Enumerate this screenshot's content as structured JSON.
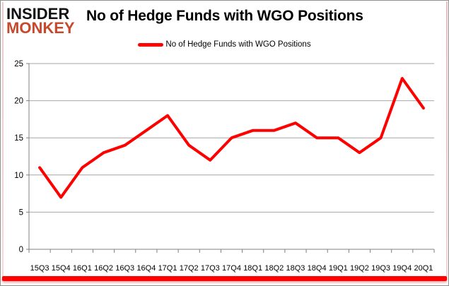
{
  "logo": {
    "line1": "INSIDER",
    "line2": "MONKEY"
  },
  "header": {
    "title": "No of Hedge Funds with WGO Positions"
  },
  "legend": {
    "label": "No of Hedge Funds with WGO Positions"
  },
  "colors": {
    "series": "#ff0000",
    "grid": "#a6a6a6",
    "axis": "#808080",
    "tick_label": "#000000",
    "logo_primary": "#111111",
    "logo_accent": "#c7492c",
    "bottom_bar": "#fe0000"
  },
  "chart_data": {
    "type": "line",
    "title": "No of Hedge Funds with WGO Positions",
    "categories": [
      "15Q3",
      "15Q4",
      "16Q1",
      "16Q2",
      "16Q3",
      "16Q4",
      "17Q1",
      "17Q2",
      "17Q3",
      "17Q4",
      "18Q1",
      "18Q2",
      "18Q3",
      "18Q4",
      "19Q1",
      "19Q2",
      "19Q3",
      "19Q4",
      "20Q1"
    ],
    "series": [
      {
        "name": "No of Hedge Funds with WGO Positions",
        "color": "#ff0000",
        "values": [
          11,
          7,
          11,
          13,
          14,
          16,
          18,
          14,
          12,
          15,
          16,
          16,
          17,
          15,
          15,
          13,
          15,
          23,
          19
        ]
      }
    ],
    "xlabel": "",
    "ylabel": "",
    "ylim": [
      0,
      25
    ],
    "yticks": [
      0,
      5,
      10,
      15,
      20,
      25
    ],
    "grid": "horizontal",
    "legend_position": "top-center"
  }
}
